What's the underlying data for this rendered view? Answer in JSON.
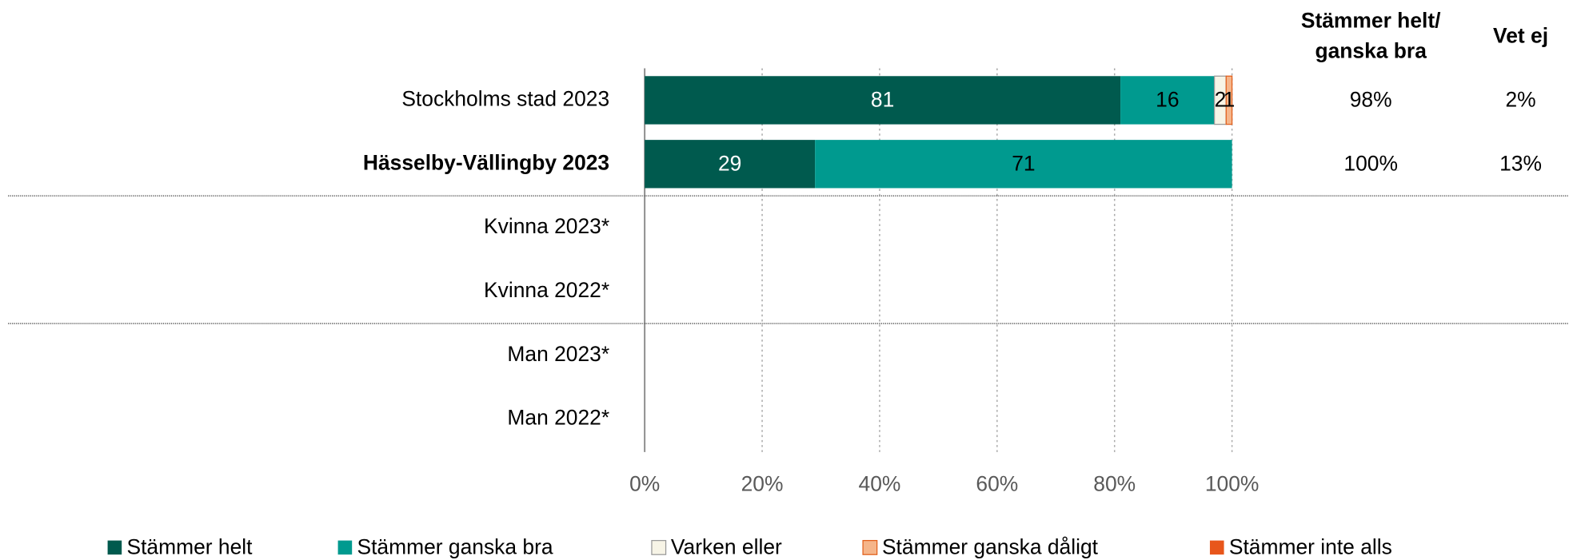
{
  "chart_data": {
    "type": "stacked_bar_horizontal",
    "categories": [
      "Stockholms stad 2023",
      "Hässelby-Vällingby 2023",
      "Kvinna 2023*",
      "Kvinna 2022*",
      "Man 2023*",
      "Man 2022*"
    ],
    "bold_category_index": 1,
    "series": [
      {
        "name": "Stämmer helt",
        "color": "#005a4e",
        "label_color": "#ffffff",
        "values": [
          81,
          29,
          null,
          null,
          null,
          null
        ]
      },
      {
        "name": "Stämmer ganska bra",
        "color": "#009a8f",
        "label_color": "#000000",
        "values": [
          16,
          71,
          null,
          null,
          null,
          null
        ]
      },
      {
        "name": "Varken eller",
        "color": "#f7f4e6",
        "border": "#999999",
        "label_color": "#000000",
        "values": [
          2,
          0,
          null,
          null,
          null,
          null
        ]
      },
      {
        "name": "Stämmer ganska dåligt",
        "color": "#f5b58a",
        "border": "#e2601c",
        "label_color": "#000000",
        "values": [
          1,
          0,
          null,
          null,
          null,
          null
        ]
      },
      {
        "name": "Stämmer inte alls",
        "color": "#e8561b",
        "label_color": "#000000",
        "values": [
          0,
          0,
          null,
          null,
          null,
          null
        ]
      }
    ],
    "xlim": [
      0,
      100
    ],
    "xticks": [
      {
        "value": 0,
        "label": "0%"
      },
      {
        "value": 20,
        "label": "20%"
      },
      {
        "value": 40,
        "label": "40%"
      },
      {
        "value": 60,
        "label": "60%"
      },
      {
        "value": 80,
        "label": "80%"
      },
      {
        "value": 100,
        "label": "100%"
      }
    ],
    "grid": true,
    "legend": "bottom",
    "summary_columns": [
      {
        "header": [
          "Stämmer helt/",
          "ganska bra"
        ],
        "values": [
          98,
          100,
          null,
          null,
          null,
          null
        ],
        "value_labels": [
          "98%",
          "100%",
          null,
          null,
          null,
          null
        ]
      },
      {
        "header": [
          "Vet ej"
        ],
        "values": [
          2,
          13,
          null,
          null,
          null,
          null
        ],
        "value_labels": [
          "2%",
          "13%",
          null,
          null,
          null,
          null
        ]
      }
    ]
  }
}
